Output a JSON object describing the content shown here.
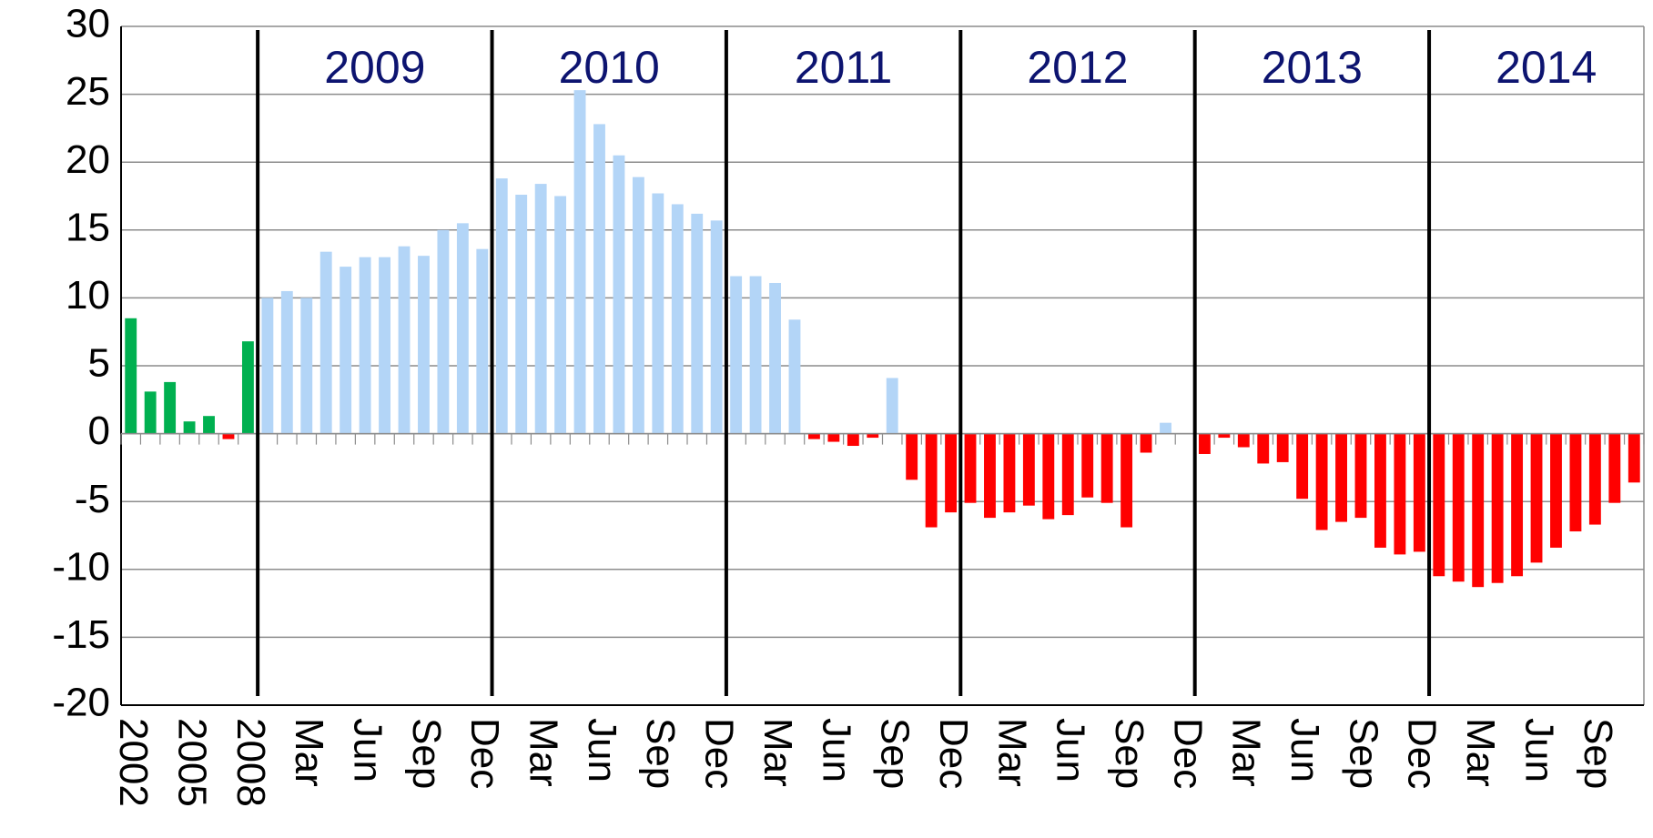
{
  "chart_data": {
    "type": "bar",
    "categories": [
      "2002",
      null,
      null,
      "2005",
      null,
      null,
      "2008",
      null,
      null,
      "Mar",
      null,
      null,
      "Jun",
      null,
      null,
      "Sep",
      null,
      null,
      "Dec",
      null,
      null,
      "Mar",
      null,
      null,
      "Jun",
      null,
      null,
      "Sep",
      null,
      null,
      "Dec",
      null,
      null,
      "Mar",
      null,
      null,
      "Jun",
      null,
      null,
      "Sep",
      null,
      null,
      "Dec",
      null,
      null,
      "Mar",
      null,
      null,
      "Jun",
      null,
      null,
      "Sep",
      null,
      null,
      "Dec",
      null,
      null,
      "Mar",
      null,
      null,
      "Jun",
      null,
      null,
      "Sep",
      null,
      null,
      "Dec",
      null,
      null,
      "Mar",
      null,
      null,
      "Jun",
      null,
      null,
      "Sep",
      null,
      null
    ],
    "values": [
      8.5,
      3.1,
      3.8,
      0.9,
      1.3,
      -0.4,
      6.8,
      10.0,
      10.5,
      10.0,
      13.4,
      12.3,
      13.0,
      13.0,
      13.8,
      13.1,
      15.0,
      15.5,
      13.6,
      18.8,
      17.6,
      18.4,
      17.5,
      25.3,
      22.8,
      20.5,
      18.9,
      17.7,
      16.9,
      16.2,
      15.7,
      11.6,
      11.6,
      11.1,
      8.4,
      -0.4,
      -0.6,
      -0.9,
      -0.3,
      4.1,
      -3.4,
      -6.9,
      -5.8,
      -5.1,
      -6.2,
      -5.8,
      -5.3,
      -6.3,
      -6.0,
      -4.7,
      -5.1,
      -6.9,
      -1.4,
      0.8,
      0,
      -1.5,
      -0.3,
      -1.0,
      -2.2,
      -2.1,
      -4.8,
      -7.1,
      -6.5,
      -6.2,
      -8.4,
      -8.9,
      -8.7,
      -10.5,
      -10.9,
      -11.3,
      -11.0,
      -10.5,
      -9.5,
      -8.4,
      -7.2,
      -6.7,
      -5.1,
      -3.6
    ],
    "colors": [
      "#00b050",
      "#00b050",
      "#00b050",
      "#00b050",
      "#00b050",
      "#ff0000",
      "#00b050",
      "#b3d5f7",
      "#b3d5f7",
      "#b3d5f7",
      "#b3d5f7",
      "#b3d5f7",
      "#b3d5f7",
      "#b3d5f7",
      "#b3d5f7",
      "#b3d5f7",
      "#b3d5f7",
      "#b3d5f7",
      "#b3d5f7",
      "#b3d5f7",
      "#b3d5f7",
      "#b3d5f7",
      "#b3d5f7",
      "#b3d5f7",
      "#b3d5f7",
      "#b3d5f7",
      "#b3d5f7",
      "#b3d5f7",
      "#b3d5f7",
      "#b3d5f7",
      "#b3d5f7",
      "#b3d5f7",
      "#b3d5f7",
      "#b3d5f7",
      "#b3d5f7",
      "#ff0000",
      "#ff0000",
      "#ff0000",
      "#ff0000",
      "#b3d5f7",
      "#ff0000",
      "#ff0000",
      "#ff0000",
      "#ff0000",
      "#ff0000",
      "#ff0000",
      "#ff0000",
      "#ff0000",
      "#ff0000",
      "#ff0000",
      "#ff0000",
      "#ff0000",
      "#ff0000",
      "#b3d5f7",
      "#ff0000",
      "#ff0000",
      "#ff0000",
      "#ff0000",
      "#ff0000",
      "#ff0000",
      "#ff0000",
      "#ff0000",
      "#ff0000",
      "#ff0000",
      "#ff0000",
      "#ff0000",
      "#ff0000",
      "#ff0000",
      "#ff0000",
      "#ff0000",
      "#ff0000",
      "#ff0000",
      "#ff0000",
      "#ff0000",
      "#ff0000",
      "#ff0000",
      "#ff0000",
      "#ff0000"
    ],
    "annotations": [
      "2009",
      "2010",
      "2011",
      "2012",
      "2013",
      "2014"
    ],
    "annotation_color": "#0d1470",
    "ylim": [
      -20,
      30
    ],
    "yticks": [
      -20,
      -15,
      -10,
      -5,
      0,
      5,
      10,
      15,
      20,
      25,
      30
    ],
    "grid": true
  }
}
